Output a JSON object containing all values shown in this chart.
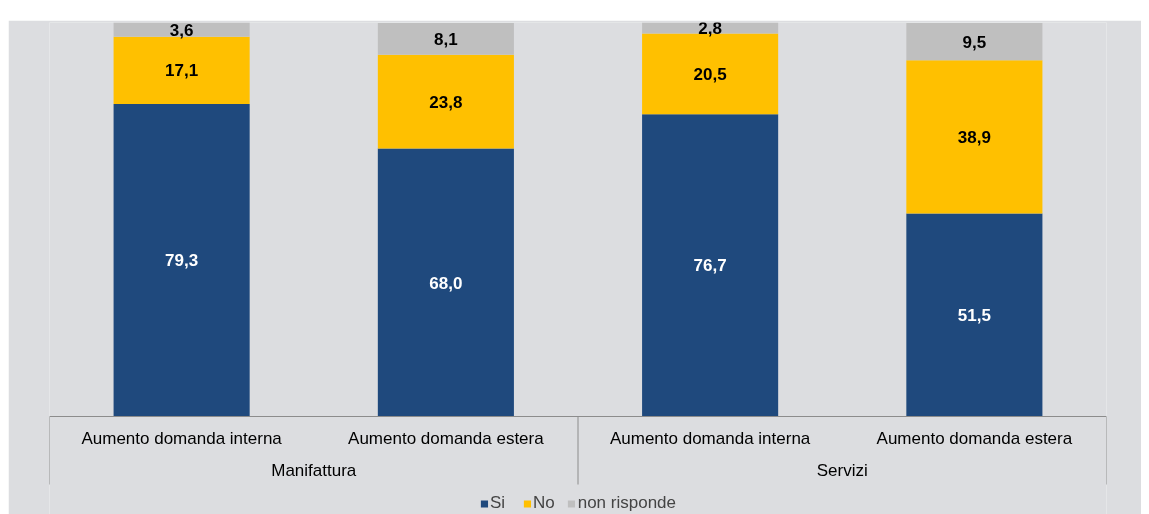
{
  "chart_data": {
    "type": "bar",
    "stacked": true,
    "legend": "bottom",
    "categories": [
      "Aumento domanda interna",
      "Aumento domanda estera",
      "Aumento domanda interna",
      "Aumento domanda estera"
    ],
    "series": [
      {
        "name": "Si",
        "color": "#1f497d",
        "values": [
          79.3,
          68.0,
          76.7,
          51.5
        ],
        "value_labels": [
          "79,3",
          "68,0",
          "76,7",
          "51,5"
        ]
      },
      {
        "name": "No",
        "color": "#ffc000",
        "values": [
          17.1,
          23.8,
          20.5,
          38.9
        ],
        "value_labels": [
          "17,1",
          "23,8",
          "20,5",
          "38,9"
        ]
      },
      {
        "name": "non risponde",
        "color": "#bfbfbf",
        "values": [
          3.6,
          8.1,
          2.8,
          9.5
        ],
        "value_labels": [
          "3,6",
          "8,1",
          "2,8",
          "9,5"
        ]
      }
    ],
    "annotations": [
      "Manifattura",
      "Servizi"
    ]
  }
}
